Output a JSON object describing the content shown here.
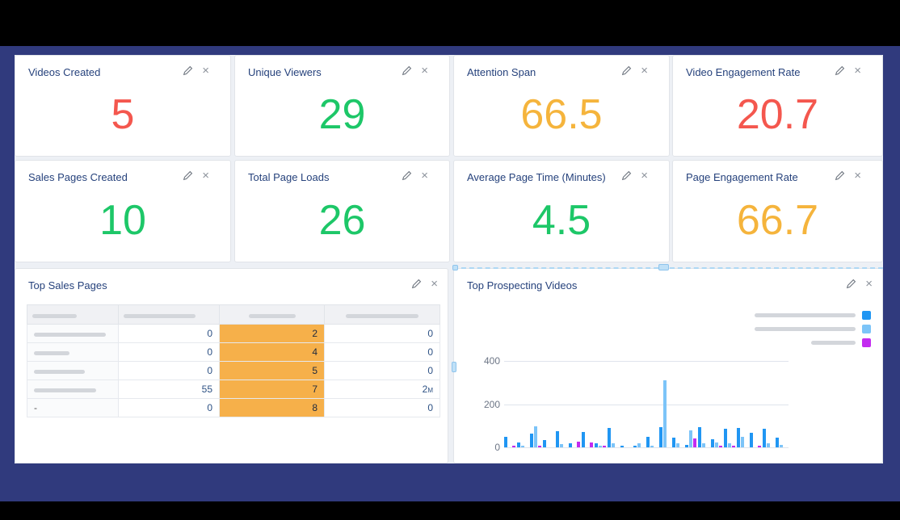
{
  "theme": {
    "background_outer": "#000000",
    "background_band": "#303a7d",
    "background_canvas": "#edf0f5",
    "card_bg": "#ffffff",
    "title_color": "#26427c",
    "green": "#1dc768",
    "red": "#f4574e",
    "orange": "#f5b43c",
    "table_highlight": "#f6b04a"
  },
  "icons": {
    "edit": "pencil-icon",
    "close_glyph": "×"
  },
  "metric_cards": [
    {
      "title": "Videos Created",
      "value": "5",
      "color": "#f4574e"
    },
    {
      "title": "Unique Viewers",
      "value": "29",
      "color": "#1dc768"
    },
    {
      "title": "Attention Span",
      "value": "66.5",
      "color": "#f5b43c"
    },
    {
      "title": "Video Engagement Rate",
      "value": "20.7",
      "color": "#f4574e"
    },
    {
      "title": "Sales Pages Created",
      "value": "10",
      "color": "#1dc768"
    },
    {
      "title": "Total Page Loads",
      "value": "26",
      "color": "#1dc768"
    },
    {
      "title": "Average Page Time (Minutes)",
      "value": "4.5",
      "color": "#1dc768"
    },
    {
      "title": "Page Engagement Rate",
      "value": "66.7",
      "color": "#f5b43c"
    }
  ],
  "sales_table": {
    "title": "Top Sales Pages",
    "header_redacted_widths": [
      55,
      89,
      58,
      90
    ],
    "rows": [
      {
        "label": "",
        "label_redacted_width": 89,
        "c2": "0",
        "c3": "2",
        "c4": "0"
      },
      {
        "label": "",
        "label_redacted_width": 44,
        "c2": "0",
        "c3": "4",
        "c4": "0"
      },
      {
        "label": "",
        "label_redacted_width": 63,
        "c2": "0",
        "c3": "5",
        "c4": "0"
      },
      {
        "label": "",
        "label_redacted_width": 77,
        "c2": "55",
        "c3": "7",
        "c4": "2m"
      },
      {
        "label": "-",
        "label_redacted_width": 0,
        "c2": "0",
        "c3": "8",
        "c4": "0"
      }
    ]
  },
  "chart_data": {
    "type": "bar",
    "title": "Top Prospecting Videos",
    "xlabel": "",
    "ylabel": "",
    "ylim": [
      0,
      400
    ],
    "yticks": [
      0,
      200,
      400
    ],
    "grid": true,
    "legend_position": "top-right",
    "legend": [
      {
        "label": "",
        "redacted_width": 125,
        "color": "#2096f3"
      },
      {
        "label": "",
        "redacted_width": 125,
        "color": "#7cc4f8"
      },
      {
        "label": "",
        "redacted_width": 55,
        "color": "#c32bf0"
      }
    ],
    "series": [
      {
        "name": "series-1",
        "color": "#2096f3",
        "values": [
          50,
          22,
          65,
          33,
          75,
          17,
          70,
          19,
          90,
          7,
          5,
          49,
          93,
          45,
          13,
          94,
          38,
          87,
          91,
          68,
          87,
          45
        ]
      },
      {
        "name": "series-2",
        "color": "#7cc4f8",
        "values": [
          0,
          5,
          96,
          0,
          14,
          0,
          0,
          8,
          17,
          0,
          19,
          5,
          310,
          19,
          79,
          19,
          21,
          19,
          49,
          0,
          19,
          10
        ]
      },
      {
        "name": "series-3",
        "color": "#c32bf0",
        "values": [
          5,
          0,
          5,
          0,
          0,
          27,
          22,
          5,
          0,
          0,
          0,
          0,
          0,
          0,
          41,
          0,
          6,
          6,
          0,
          6,
          0,
          0
        ]
      }
    ]
  }
}
